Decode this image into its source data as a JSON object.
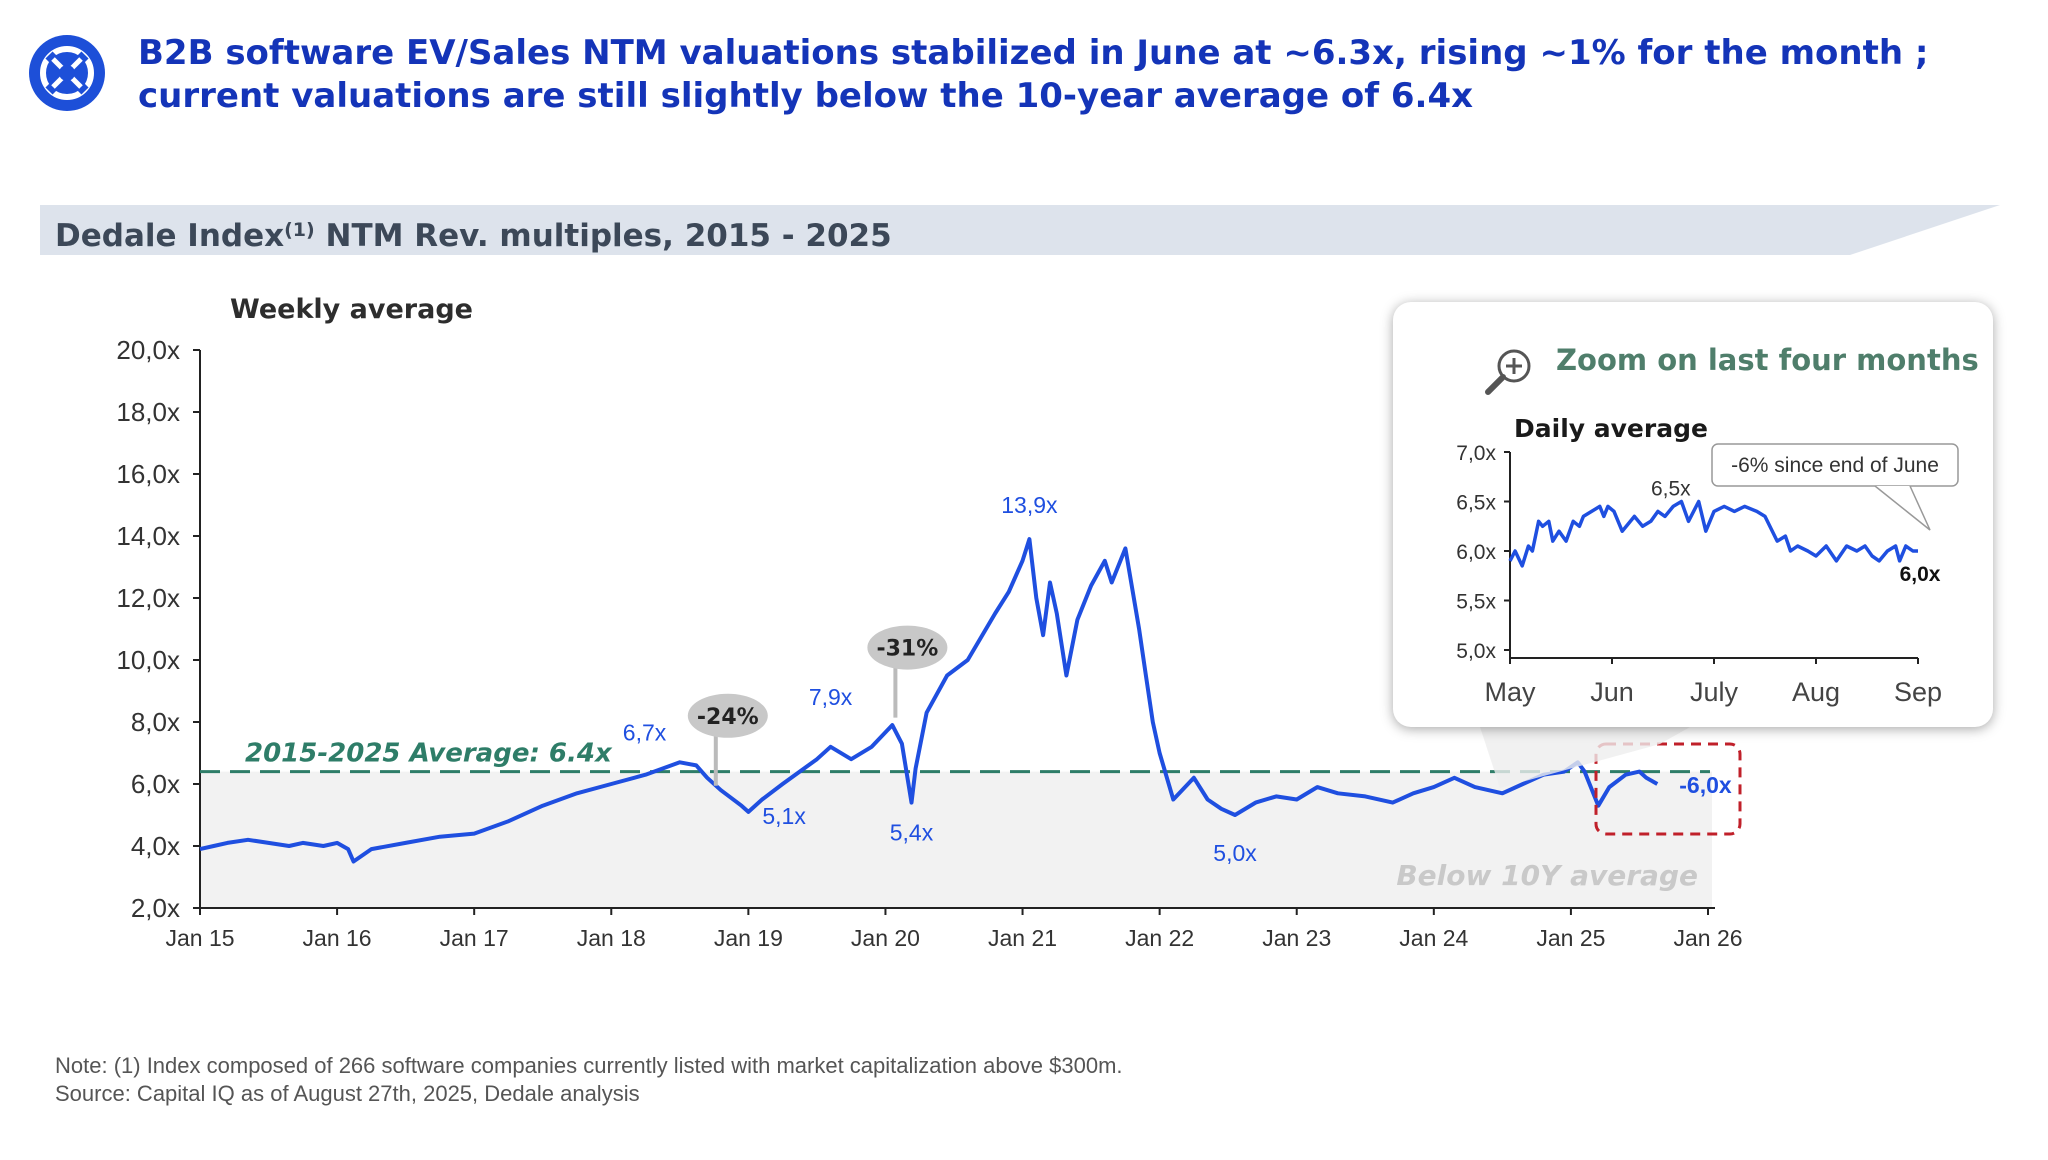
{
  "headline": "B2B software EV/Sales NTM valuations stabilized in June at ~6.3x, rising ~1% for the month ; current valuations are still slightly below the 10-year average of 6.4x",
  "banner": {
    "title_main": "Dedale Index",
    "title_sup": "(1)",
    "title_rest": " NTM Rev. multiples, 2015 - 2025"
  },
  "colors": {
    "headline": "#1434b8",
    "series": "#1f4fe0",
    "average_line": "#2e7d68",
    "shaded": "#f2f2f2",
    "callout_box": "#c8c8c8",
    "highlight_box": "#c0202a"
  },
  "chart_data": [
    {
      "type": "line",
      "ylabel": "Weekly average",
      "ylim": [
        2,
        20
      ],
      "yticks": [
        "20,0x",
        "18,0x",
        "16,0x",
        "14,0x",
        "12,0x",
        "10,0x",
        "8,0x",
        "6,0x",
        "4,0x",
        "2,0x"
      ],
      "xticks": [
        "Jan 15",
        "Jan 16",
        "Jan 17",
        "Jan 18",
        "Jan 19",
        "Jan 20",
        "Jan 21",
        "Jan 22",
        "Jan 23",
        "Jan 24",
        "Jan 25",
        "Jan 26"
      ],
      "xlim": [
        2015.0,
        2026.0
      ],
      "series": [
        {
          "x": [
            2015.0,
            2015.1,
            2015.2,
            2015.35,
            2015.5,
            2015.65,
            2015.75,
            2015.9,
            2016.0,
            2016.08,
            2016.12,
            2016.25,
            2016.5,
            2016.75,
            2017.0,
            2017.25,
            2017.5,
            2017.75,
            2018.0,
            2018.25,
            2018.5,
            2018.62,
            2018.7,
            2018.8,
            2018.95,
            2019.0,
            2019.1,
            2019.25,
            2019.5,
            2019.6,
            2019.75,
            2019.9,
            2020.05,
            2020.12,
            2020.19,
            2020.22,
            2020.3,
            2020.45,
            2020.6,
            2020.8,
            2020.9,
            2021.0,
            2021.05,
            2021.1,
            2021.15,
            2021.2,
            2021.25,
            2021.32,
            2021.4,
            2021.5,
            2021.6,
            2021.65,
            2021.75,
            2021.85,
            2021.9,
            2021.95,
            2022.0,
            2022.1,
            2022.25,
            2022.35,
            2022.45,
            2022.55,
            2022.7,
            2022.85,
            2023.0,
            2023.15,
            2023.3,
            2023.5,
            2023.7,
            2023.85,
            2024.0,
            2024.15,
            2024.3,
            2024.5,
            2024.65,
            2024.8,
            2024.95,
            2025.05,
            2025.1,
            2025.2,
            2025.28,
            2025.4,
            2025.5,
            2025.55,
            2025.63
          ],
          "values": [
            3.9,
            4.0,
            4.1,
            4.2,
            4.1,
            4.0,
            4.1,
            4.0,
            4.1,
            3.9,
            3.5,
            3.9,
            4.1,
            4.3,
            4.4,
            4.8,
            5.3,
            5.7,
            6.0,
            6.3,
            6.7,
            6.6,
            6.2,
            5.8,
            5.3,
            5.1,
            5.5,
            6.0,
            6.8,
            7.2,
            6.8,
            7.2,
            7.9,
            7.3,
            5.4,
            6.5,
            8.3,
            9.5,
            10.0,
            11.5,
            12.2,
            13.2,
            13.9,
            12.0,
            10.8,
            12.5,
            11.5,
            9.5,
            11.3,
            12.4,
            13.2,
            12.5,
            13.6,
            11.0,
            9.5,
            8.0,
            7.0,
            5.5,
            6.2,
            5.5,
            5.2,
            5.0,
            5.4,
            5.6,
            5.5,
            5.9,
            5.7,
            5.6,
            5.4,
            5.7,
            5.9,
            6.2,
            5.9,
            5.7,
            6.0,
            6.3,
            6.4,
            6.7,
            6.4,
            5.3,
            5.9,
            6.3,
            6.4,
            6.2,
            6.0
          ]
        }
      ],
      "average": {
        "value": 6.4,
        "label": "2015-2025 Average: 6.4x"
      },
      "shaded_label": "Below 10Y average",
      "annotations": [
        {
          "text": "6,7x",
          "x": 2018.62,
          "y": 6.7
        },
        {
          "text": "5,1x",
          "x": 2019.0,
          "y": 5.1
        },
        {
          "text": "7,9x",
          "x": 2020.05,
          "y": 7.9
        },
        {
          "text": "5,4x",
          "x": 2020.19,
          "y": 5.4
        },
        {
          "text": "13,9x",
          "x": 2021.05,
          "y": 13.9
        },
        {
          "text": "5,0x",
          "x": 2022.55,
          "y": 5.0
        },
        {
          "text": "6,0x",
          "x": 2025.63,
          "y": 6.0
        }
      ],
      "callouts": [
        {
          "text": "-24%",
          "x": 2018.85,
          "y": 8.2
        },
        {
          "text": "-31%",
          "x": 2020.16,
          "y": 10.4
        }
      ]
    },
    {
      "type": "line",
      "title": "Zoom on last four months",
      "ylabel": "Daily average",
      "ylim": [
        5.0,
        7.0
      ],
      "yticks": [
        "7,0x",
        "6,5x",
        "6,0x",
        "5,5x",
        "5,0x"
      ],
      "xticks": [
        "May",
        "Jun",
        "July",
        "Aug",
        "Sep"
      ],
      "series": [
        {
          "x": [
            0.0,
            0.05,
            0.12,
            0.18,
            0.22,
            0.28,
            0.32,
            0.38,
            0.42,
            0.48,
            0.55,
            0.62,
            0.68,
            0.72,
            0.8,
            0.88,
            0.92,
            0.96,
            1.02,
            1.1,
            1.18,
            1.22,
            1.3,
            1.38,
            1.45,
            1.52,
            1.6,
            1.68,
            1.75,
            1.85,
            1.92,
            2.0,
            2.1,
            2.2,
            2.3,
            2.42,
            2.5,
            2.62,
            2.7,
            2.75,
            2.82,
            2.92,
            3.0,
            3.1,
            3.2,
            3.3,
            3.4,
            3.48,
            3.55,
            3.62,
            3.7,
            3.78,
            3.82,
            3.88,
            3.95,
            4.0
          ],
          "values": [
            5.9,
            6.0,
            5.85,
            6.05,
            6.0,
            6.3,
            6.25,
            6.3,
            6.1,
            6.2,
            6.1,
            6.3,
            6.25,
            6.35,
            6.4,
            6.45,
            6.35,
            6.45,
            6.4,
            6.2,
            6.3,
            6.35,
            6.25,
            6.3,
            6.4,
            6.35,
            6.45,
            6.5,
            6.3,
            6.5,
            6.2,
            6.4,
            6.45,
            6.4,
            6.45,
            6.4,
            6.35,
            6.1,
            6.15,
            6.0,
            6.05,
            6.0,
            5.95,
            6.05,
            5.9,
            6.05,
            6.0,
            6.05,
            5.95,
            5.9,
            6.0,
            6.05,
            5.9,
            6.05,
            6.0,
            6.0
          ]
        }
      ],
      "annotations": [
        {
          "text": "6,5x",
          "x": 1.85,
          "y": 6.5
        },
        {
          "text": "6,0x",
          "x": 4.0,
          "y": 6.0
        }
      ],
      "callout": {
        "text": "-6% since end of June"
      }
    }
  ],
  "notes": {
    "line1": "Note: (1) Index composed of 266 software companies currently listed with market capitalization above $300m.",
    "line2": "Source: Capital IQ as of August 27th, 2025, Dedale analysis"
  }
}
